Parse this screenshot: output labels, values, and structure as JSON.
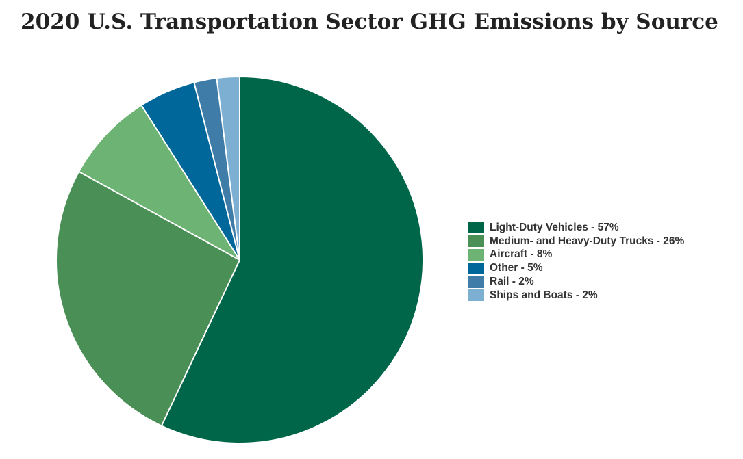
{
  "chart_data": {
    "type": "pie",
    "title": "2020 U.S. Transportation Sector GHG Emissions by Source",
    "unit": "%",
    "legend_position": "right",
    "start_angle": "12 o'clock",
    "direction": "clockwise",
    "slices": [
      {
        "label": "Light-Duty Vehicles - 57%",
        "name": "Light-Duty Vehicles",
        "value": 57,
        "color": "#00664a"
      },
      {
        "label": "Medium- and Heavy-Duty Trucks - 26%",
        "name": "Medium- and Heavy-Duty Trucks",
        "value": 26,
        "color": "#4a8f55"
      },
      {
        "label": "Aircraft - 8%",
        "name": "Aircraft",
        "value": 8,
        "color": "#6db373"
      },
      {
        "label": "Other - 5%",
        "name": "Other",
        "value": 5,
        "color": "#00679a"
      },
      {
        "label": "Rail - 2%",
        "name": "Rail",
        "value": 2,
        "color": "#3f7da8"
      },
      {
        "label": "Ships and Boats - 2%",
        "name": "Ships and Boats",
        "value": 2,
        "color": "#7dafd2"
      }
    ]
  }
}
